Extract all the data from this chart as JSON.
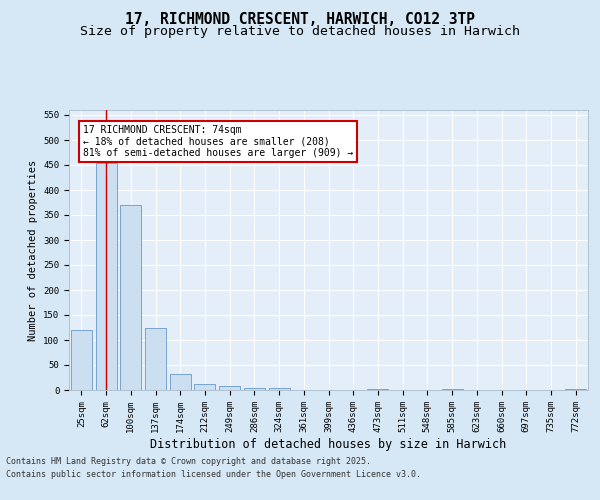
{
  "title": "17, RICHMOND CRESCENT, HARWICH, CO12 3TP",
  "subtitle": "Size of property relative to detached houses in Harwich",
  "xlabel": "Distribution of detached houses by size in Harwich",
  "ylabel": "Number of detached properties",
  "categories": [
    "25sqm",
    "62sqm",
    "100sqm",
    "137sqm",
    "174sqm",
    "212sqm",
    "249sqm",
    "286sqm",
    "324sqm",
    "361sqm",
    "399sqm",
    "436sqm",
    "473sqm",
    "511sqm",
    "548sqm",
    "585sqm",
    "623sqm",
    "660sqm",
    "697sqm",
    "735sqm",
    "772sqm"
  ],
  "values": [
    120,
    455,
    370,
    125,
    33,
    13,
    8,
    5,
    5,
    1,
    0,
    0,
    2,
    0,
    0,
    2,
    0,
    0,
    0,
    0,
    3
  ],
  "bar_color": "#ccdff0",
  "bar_edge_color": "#6699cc",
  "red_line_x": 1,
  "annotation_text": "17 RICHMOND CRESCENT: 74sqm\n← 18% of detached houses are smaller (208)\n81% of semi-detached houses are larger (909) →",
  "annotation_box_facecolor": "#ffffff",
  "annotation_box_edgecolor": "#cc0000",
  "ylim": [
    0,
    560
  ],
  "yticks": [
    0,
    50,
    100,
    150,
    200,
    250,
    300,
    350,
    400,
    450,
    500,
    550
  ],
  "bg_color": "#d6e8f5",
  "plot_bg_color": "#e4eef8",
  "grid_color": "#ffffff",
  "title_fontsize": 10.5,
  "subtitle_fontsize": 9.5,
  "xlabel_fontsize": 8.5,
  "ylabel_fontsize": 7.5,
  "tick_fontsize": 6.5,
  "ann_fontsize": 7.0,
  "footer_line1": "Contains HM Land Registry data © Crown copyright and database right 2025.",
  "footer_line2": "Contains public sector information licensed under the Open Government Licence v3.0."
}
